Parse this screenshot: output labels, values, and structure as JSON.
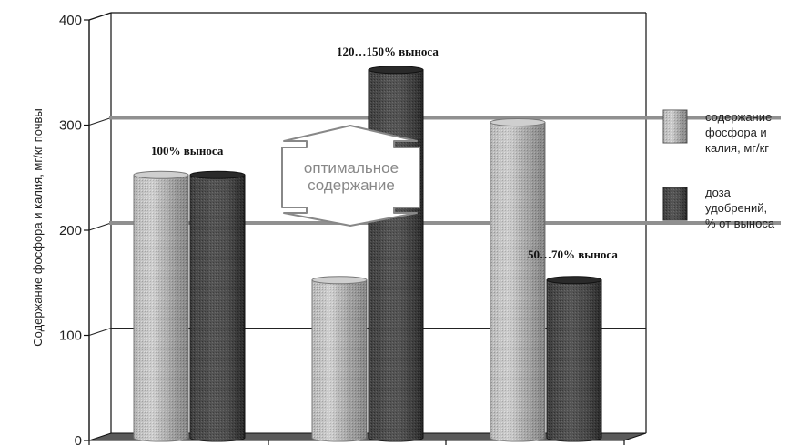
{
  "chart_data": {
    "type": "bar",
    "categories": [
      "",
      "",
      ""
    ],
    "series": [
      {
        "name": "содержание фосфора и калия, мг/кг",
        "values": [
          250,
          150,
          300
        ]
      },
      {
        "name": "доза удобрений, % от выноса",
        "values": [
          250,
          350,
          150
        ]
      }
    ],
    "ylabel": "Содержание фосфора и калия, мг/кг почвы",
    "ylim": [
      0,
      400
    ],
    "yticks": [
      "0",
      "100",
      "200",
      "300",
      "400"
    ],
    "optimal_range": [
      200,
      300
    ],
    "optimal_label": [
      "оптимальное",
      "содержание"
    ],
    "annotations": [
      "100% выноса",
      "120…150% выноса",
      "50…70% выноса"
    ],
    "legend": [
      [
        "содержание",
        "фосфора и",
        "калия, мг/кг"
      ],
      [
        "доза",
        "удобрений,",
        "% от выноса"
      ]
    ],
    "legend_position": "right",
    "grid": true,
    "colors": {
      "series_light": "#a8a8a8",
      "series_dark": "#3a3a3a",
      "range_band": "#909090"
    }
  }
}
